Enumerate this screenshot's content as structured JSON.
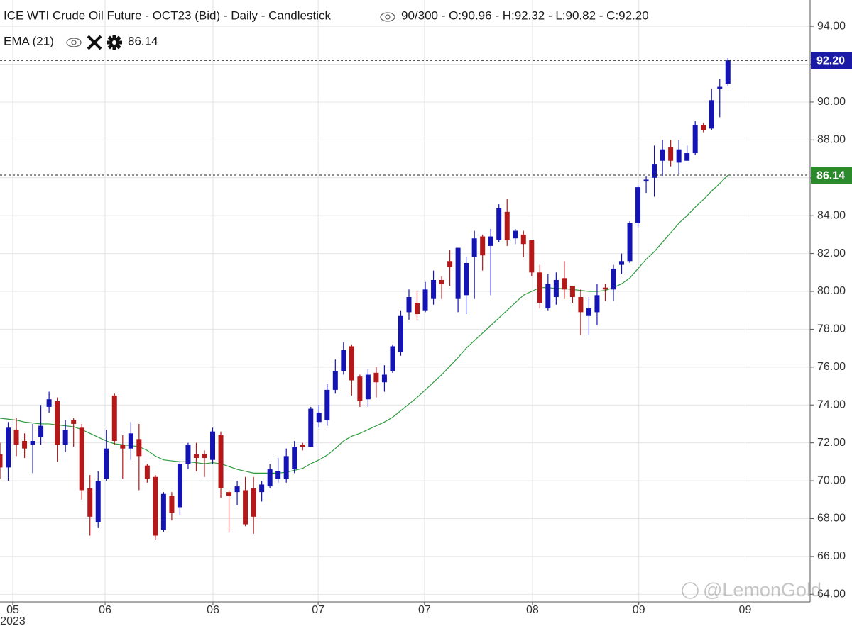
{
  "chart_data": {
    "type": "candlestick",
    "title": "ICE WTI Crude Oil Future - OCT23 (Bid) - Daily - Candlestick",
    "status": "90/300 - O:90.96 - H:92.32 - L:90.82 - C:92.20",
    "watermark": "@LemonGold",
    "x_sublabel": "2023",
    "xlim": [
      0,
      98.96
    ],
    "xticks": [
      {
        "value": 1.56,
        "label": "05"
      },
      {
        "value": 12.85,
        "label": "06"
      },
      {
        "value": 26.04,
        "label": "06"
      },
      {
        "value": 38.9,
        "label": "07"
      },
      {
        "value": 51.9,
        "label": "07"
      },
      {
        "value": 65.1,
        "label": "08"
      },
      {
        "value": 78.1,
        "label": "09"
      },
      {
        "value": 91.1,
        "label": "09"
      }
    ],
    "ylim": [
      63.6,
      95.39
    ],
    "yticks": [
      {
        "value": 64,
        "label": "64.00"
      },
      {
        "value": 66,
        "label": "66.00"
      },
      {
        "value": 68,
        "label": "68.00"
      },
      {
        "value": 70,
        "label": "70.00"
      },
      {
        "value": 72,
        "label": "72.00"
      },
      {
        "value": 74,
        "label": "74.00"
      },
      {
        "value": 76,
        "label": "76.00"
      },
      {
        "value": 78,
        "label": "78.00"
      },
      {
        "value": 80,
        "label": "80.00"
      },
      {
        "value": 82,
        "label": "82.00"
      },
      {
        "value": 84,
        "label": "84.00"
      },
      {
        "value": 86,
        "label": "86.00"
      },
      {
        "value": 88,
        "label": "88.00"
      },
      {
        "value": 90,
        "label": "90.00"
      },
      {
        "value": 92,
        "label": "92.00"
      },
      {
        "value": 94,
        "label": "94.00"
      }
    ],
    "grid": true,
    "candles": {
      "up_color": "#1414b4",
      "down_color": "#b41818",
      "value_label": "92.20",
      "label_color": "#1a1aa6",
      "open": [
        71.4,
        70.7,
        72.7,
        72.1,
        71.9,
        72.3,
        73.9,
        74.2,
        71.9,
        73.2,
        72.8,
        69.6,
        67.8,
        70.1,
        74.5,
        71.9,
        71.7,
        72.2,
        70.8,
        70.2,
        67.4,
        69.2,
        68.6,
        70.9,
        71.4,
        71.4,
        71.1,
        72.4,
        69.4,
        69.4,
        69.5,
        69.6,
        69.4,
        69.7,
        70.1,
        70.1,
        70.6,
        71.9,
        71.8,
        73.1,
        73.2,
        74.8,
        75.8,
        77.1,
        75.5,
        74.3,
        75.7,
        75.2,
        75.8,
        76.8,
        78.9,
        79.4,
        79.0,
        79.6,
        80.6,
        81.6,
        79.6,
        79.8,
        81.8,
        82.9,
        82.4,
        82.7,
        84.2,
        82.8,
        83.0,
        82.7,
        81.0,
        79.1,
        79.7,
        80.7,
        80.3,
        79.7,
        78.7,
        78.9,
        80.2,
        80.1,
        81.4,
        81.6,
        83.6,
        85.8,
        86.0,
        86.9,
        87.6,
        86.8,
        86.9,
        87.3,
        88.8,
        88.6,
        90.7,
        90.96
      ],
      "high": [
        72.0,
        73.1,
        73.3,
        72.5,
        73.0,
        74.0,
        74.7,
        74.4,
        73.2,
        73.3,
        73.0,
        70.3,
        70.5,
        72.7,
        74.6,
        72.4,
        73.1,
        73.0,
        70.9,
        70.3,
        69.4,
        69.4,
        71.0,
        72.0,
        72.0,
        71.6,
        72.8,
        72.6,
        69.5,
        70.0,
        70.2,
        70.2,
        70.0,
        70.9,
        71.2,
        71.7,
        72.1,
        72.0,
        73.9,
        74.0,
        75.1,
        76.4,
        77.3,
        77.2,
        75.6,
        75.9,
        76.0,
        76.1,
        77.2,
        79.0,
        80.1,
        80.0,
        80.5,
        81.1,
        80.8,
        82.2,
        82.3,
        81.8,
        83.2,
        83.0,
        83.3,
        84.6,
        84.9,
        83.3,
        83.2,
        82.7,
        81.4,
        80.9,
        81.0,
        81.6,
        80.3,
        80.1,
        79.7,
        80.4,
        80.4,
        81.4,
        82.0,
        83.7,
        85.6,
        86.1,
        87.7,
        88.0,
        88.0,
        88.0,
        87.7,
        89.0,
        88.9,
        90.7,
        91.2,
        92.32
      ],
      "low": [
        70.1,
        70.0,
        71.3,
        71.2,
        70.4,
        71.9,
        73.6,
        71.0,
        71.5,
        71.8,
        69.0,
        67.1,
        67.5,
        70.0,
        71.9,
        70.1,
        71.1,
        69.5,
        69.9,
        66.9,
        67.3,
        67.9,
        68.2,
        70.6,
        70.5,
        70.2,
        70.9,
        69.1,
        67.3,
        68.7,
        67.6,
        67.2,
        68.9,
        69.6,
        69.9,
        69.9,
        70.4,
        71.6,
        71.8,
        72.8,
        72.9,
        74.6,
        75.6,
        74.5,
        73.9,
        73.9,
        74.4,
        74.7,
        75.7,
        76.6,
        78.5,
        78.5,
        78.9,
        79.3,
        79.6,
        80.3,
        78.9,
        78.8,
        79.6,
        81.1,
        79.8,
        82.6,
        82.4,
        82.5,
        81.8,
        80.8,
        79.1,
        79.0,
        79.3,
        79.6,
        79.4,
        77.7,
        77.7,
        78.2,
        79.5,
        79.5,
        80.9,
        81.5,
        83.4,
        85.2,
        85.0,
        86.1,
        86.6,
        86.2,
        86.9,
        87.2,
        88.4,
        88.5,
        89.2,
        90.82
      ],
      "close": [
        70.7,
        72.8,
        71.9,
        71.7,
        72.1,
        72.9,
        74.3,
        71.9,
        72.7,
        73.0,
        69.5,
        68.1,
        70.0,
        71.7,
        72.1,
        71.7,
        72.5,
        71.3,
        70.1,
        67.1,
        69.3,
        68.3,
        70.9,
        71.9,
        71.2,
        71.2,
        72.6,
        69.6,
        69.2,
        69.7,
        67.7,
        68.1,
        69.8,
        70.6,
        70.5,
        71.3,
        71.8,
        71.8,
        73.8,
        73.6,
        74.8,
        75.8,
        76.9,
        75.3,
        74.2,
        75.6,
        75.2,
        75.6,
        77.1,
        78.7,
        79.7,
        78.8,
        80.1,
        80.6,
        80.4,
        81.3,
        82.3,
        81.5,
        82.8,
        81.9,
        82.9,
        84.4,
        82.7,
        83.2,
        82.5,
        81.0,
        79.4,
        80.4,
        80.6,
        80.1,
        79.7,
        78.9,
        79.1,
        79.8,
        80.1,
        81.2,
        81.6,
        83.6,
        85.5,
        85.9,
        86.7,
        87.5,
        86.9,
        87.5,
        87.3,
        88.8,
        88.5,
        90.1,
        90.8,
        92.2
      ]
    },
    "series": [
      {
        "name": "EMA (21)",
        "color": "#2e9a3e",
        "value_label": "86.14",
        "label_color": "#2b8a2b",
        "values": [
          73.3,
          73.25,
          73.2,
          73.1,
          73.05,
          73.0,
          73.0,
          72.95,
          72.9,
          72.85,
          72.7,
          72.5,
          72.3,
          72.1,
          71.95,
          71.9,
          71.85,
          71.8,
          71.6,
          71.3,
          71.1,
          71.05,
          71.0,
          71.0,
          70.95,
          70.9,
          70.95,
          70.9,
          70.75,
          70.6,
          70.5,
          70.4,
          70.4,
          70.4,
          70.4,
          70.45,
          70.55,
          70.65,
          70.9,
          71.1,
          71.35,
          71.7,
          72.1,
          72.35,
          72.5,
          72.7,
          72.9,
          73.1,
          73.35,
          73.7,
          74.05,
          74.4,
          74.8,
          75.2,
          75.6,
          76.05,
          76.5,
          77.0,
          77.4,
          77.8,
          78.2,
          78.6,
          79.0,
          79.4,
          79.8,
          80.0,
          80.2,
          80.2,
          80.15,
          80.15,
          80.1,
          80.05,
          80.0,
          80.0,
          80.05,
          80.2,
          80.4,
          80.7,
          81.2,
          81.7,
          82.1,
          82.6,
          83.1,
          83.6,
          84.0,
          84.45,
          84.85,
          85.3,
          85.7,
          86.14
        ]
      }
    ]
  }
}
